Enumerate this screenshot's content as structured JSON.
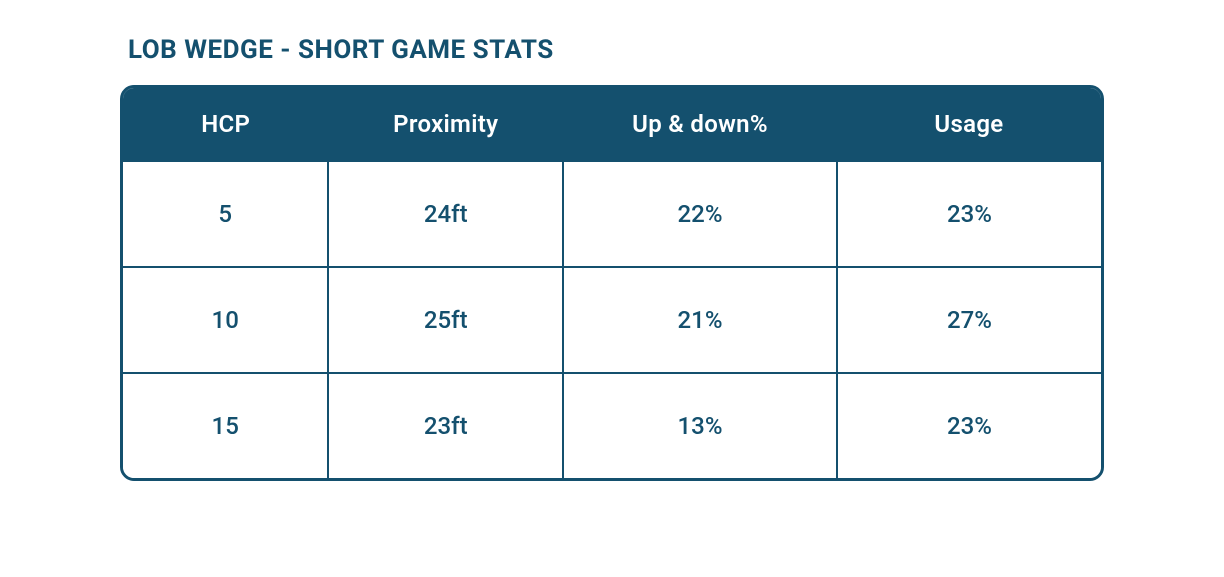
{
  "title": "LOB WEDGE - SHORT GAME STATS",
  "colors": {
    "primary": "#14506e",
    "text": "#14506e",
    "header_bg": "#14506e",
    "header_text": "#ffffff",
    "border": "#14506e",
    "cell_bg": "#ffffff"
  },
  "typography": {
    "title_fontsize": 26,
    "title_weight": 700,
    "header_fontsize": 24,
    "header_weight": 600,
    "cell_fontsize": 24,
    "cell_weight": 500
  },
  "table": {
    "type": "table",
    "border_radius": 14,
    "border_width": 3,
    "cell_border_width": 2,
    "columns": [
      {
        "key": "hcp",
        "label": "HCP",
        "width_pct": 21
      },
      {
        "key": "proximity",
        "label": "Proximity",
        "width_pct": 24
      },
      {
        "key": "up_down",
        "label": "Up & down%",
        "width_pct": 28
      },
      {
        "key": "usage",
        "label": "Usage",
        "width_pct": 27
      }
    ],
    "rows": [
      {
        "hcp": "5",
        "proximity": "24ft",
        "up_down": "22%",
        "usage": "23%"
      },
      {
        "hcp": "10",
        "proximity": "25ft",
        "up_down": "21%",
        "usage": "27%"
      },
      {
        "hcp": "15",
        "proximity": "23ft",
        "up_down": "13%",
        "usage": "23%"
      }
    ]
  }
}
